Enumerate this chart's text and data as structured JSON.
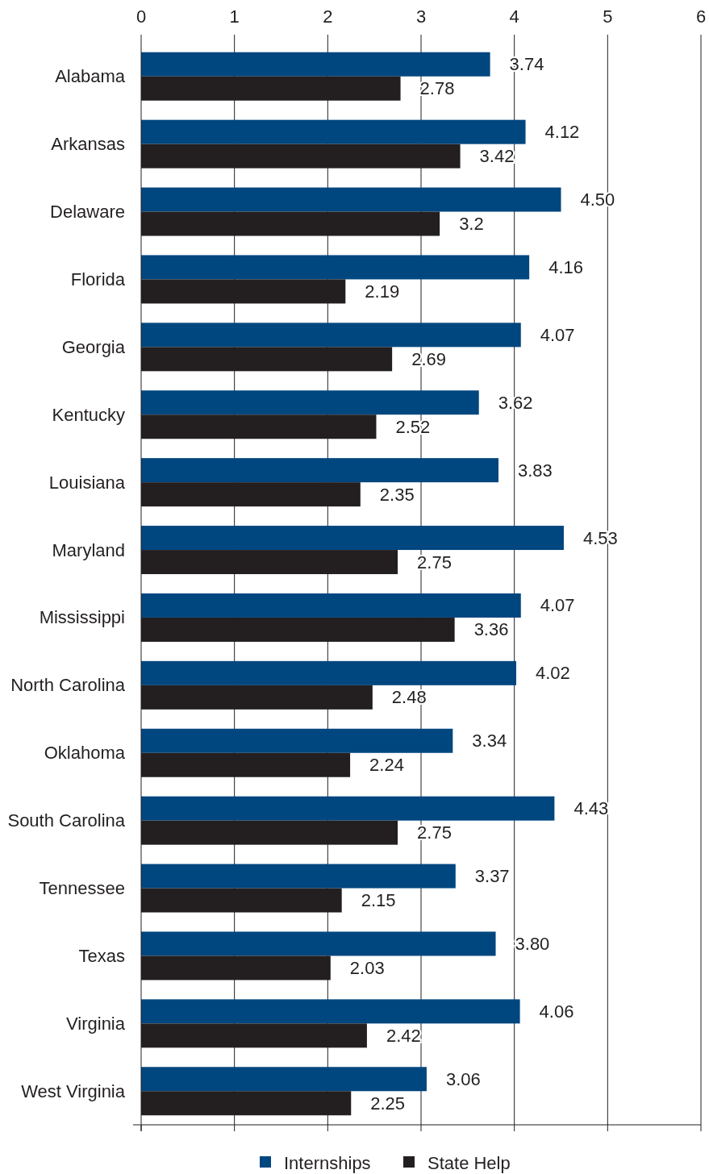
{
  "chart_data": {
    "type": "bar",
    "orientation": "horizontal",
    "categories": [
      "Alabama",
      "Arkansas",
      "Delaware",
      "Florida",
      "Georgia",
      "Kentucky",
      "Louisiana",
      "Maryland",
      "Mississippi",
      "North Carolina",
      "Oklahoma",
      "South Carolina",
      "Tennessee",
      "Texas",
      "Virginia",
      "West Virginia"
    ],
    "series": [
      {
        "name": "Internships",
        "color": "#00467f",
        "values": [
          3.74,
          4.12,
          4.5,
          4.16,
          4.07,
          3.62,
          3.83,
          4.53,
          4.07,
          4.02,
          3.34,
          4.43,
          3.37,
          3.8,
          4.06,
          3.06
        ],
        "value_labels": [
          "3.74",
          "4.12",
          "4.50",
          "4.16",
          "4.07",
          "3.62",
          "3.83",
          "4.53",
          "4.07",
          "4.02",
          "3.34",
          "4.43",
          "3.37",
          "3.80",
          "4.06",
          "3.06"
        ]
      },
      {
        "name": "State Help",
        "color": "#231f20",
        "values": [
          2.78,
          3.42,
          3.2,
          2.19,
          2.69,
          2.52,
          2.35,
          2.75,
          3.36,
          2.48,
          2.24,
          2.75,
          2.15,
          2.03,
          2.42,
          2.25
        ],
        "value_labels": [
          "2.78",
          "3.42",
          "3.2",
          "2.19",
          "2.69",
          "2.52",
          "2.35",
          "2.75",
          "3.36",
          "2.48",
          "2.24",
          "2.75",
          "2.15",
          "2.03",
          "2.42",
          "2.25"
        ]
      }
    ],
    "xlim": [
      0,
      6
    ],
    "xticks": [
      0,
      1,
      2,
      3,
      4,
      5,
      6
    ],
    "grid": "x",
    "legend": "bottom"
  }
}
